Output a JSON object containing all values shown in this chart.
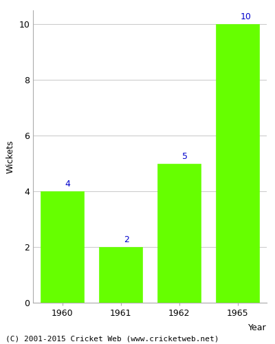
{
  "categories": [
    "1960",
    "1961",
    "1962",
    "1965"
  ],
  "values": [
    4,
    2,
    5,
    10
  ],
  "bar_color": "#66ff00",
  "bar_edge_color": "#66ff00",
  "xlabel": "Year",
  "ylabel": "Wickets",
  "ylim": [
    0,
    10.5
  ],
  "yticks": [
    0,
    2,
    4,
    6,
    8,
    10
  ],
  "label_color": "#0000cc",
  "label_fontsize": 9,
  "axis_label_fontsize": 9,
  "tick_fontsize": 9,
  "footer_text": "(C) 2001-2015 Cricket Web (www.cricketweb.net)",
  "footer_fontsize": 8,
  "footer_color": "#000000",
  "background_color": "#ffffff",
  "grid_color": "#cccccc"
}
